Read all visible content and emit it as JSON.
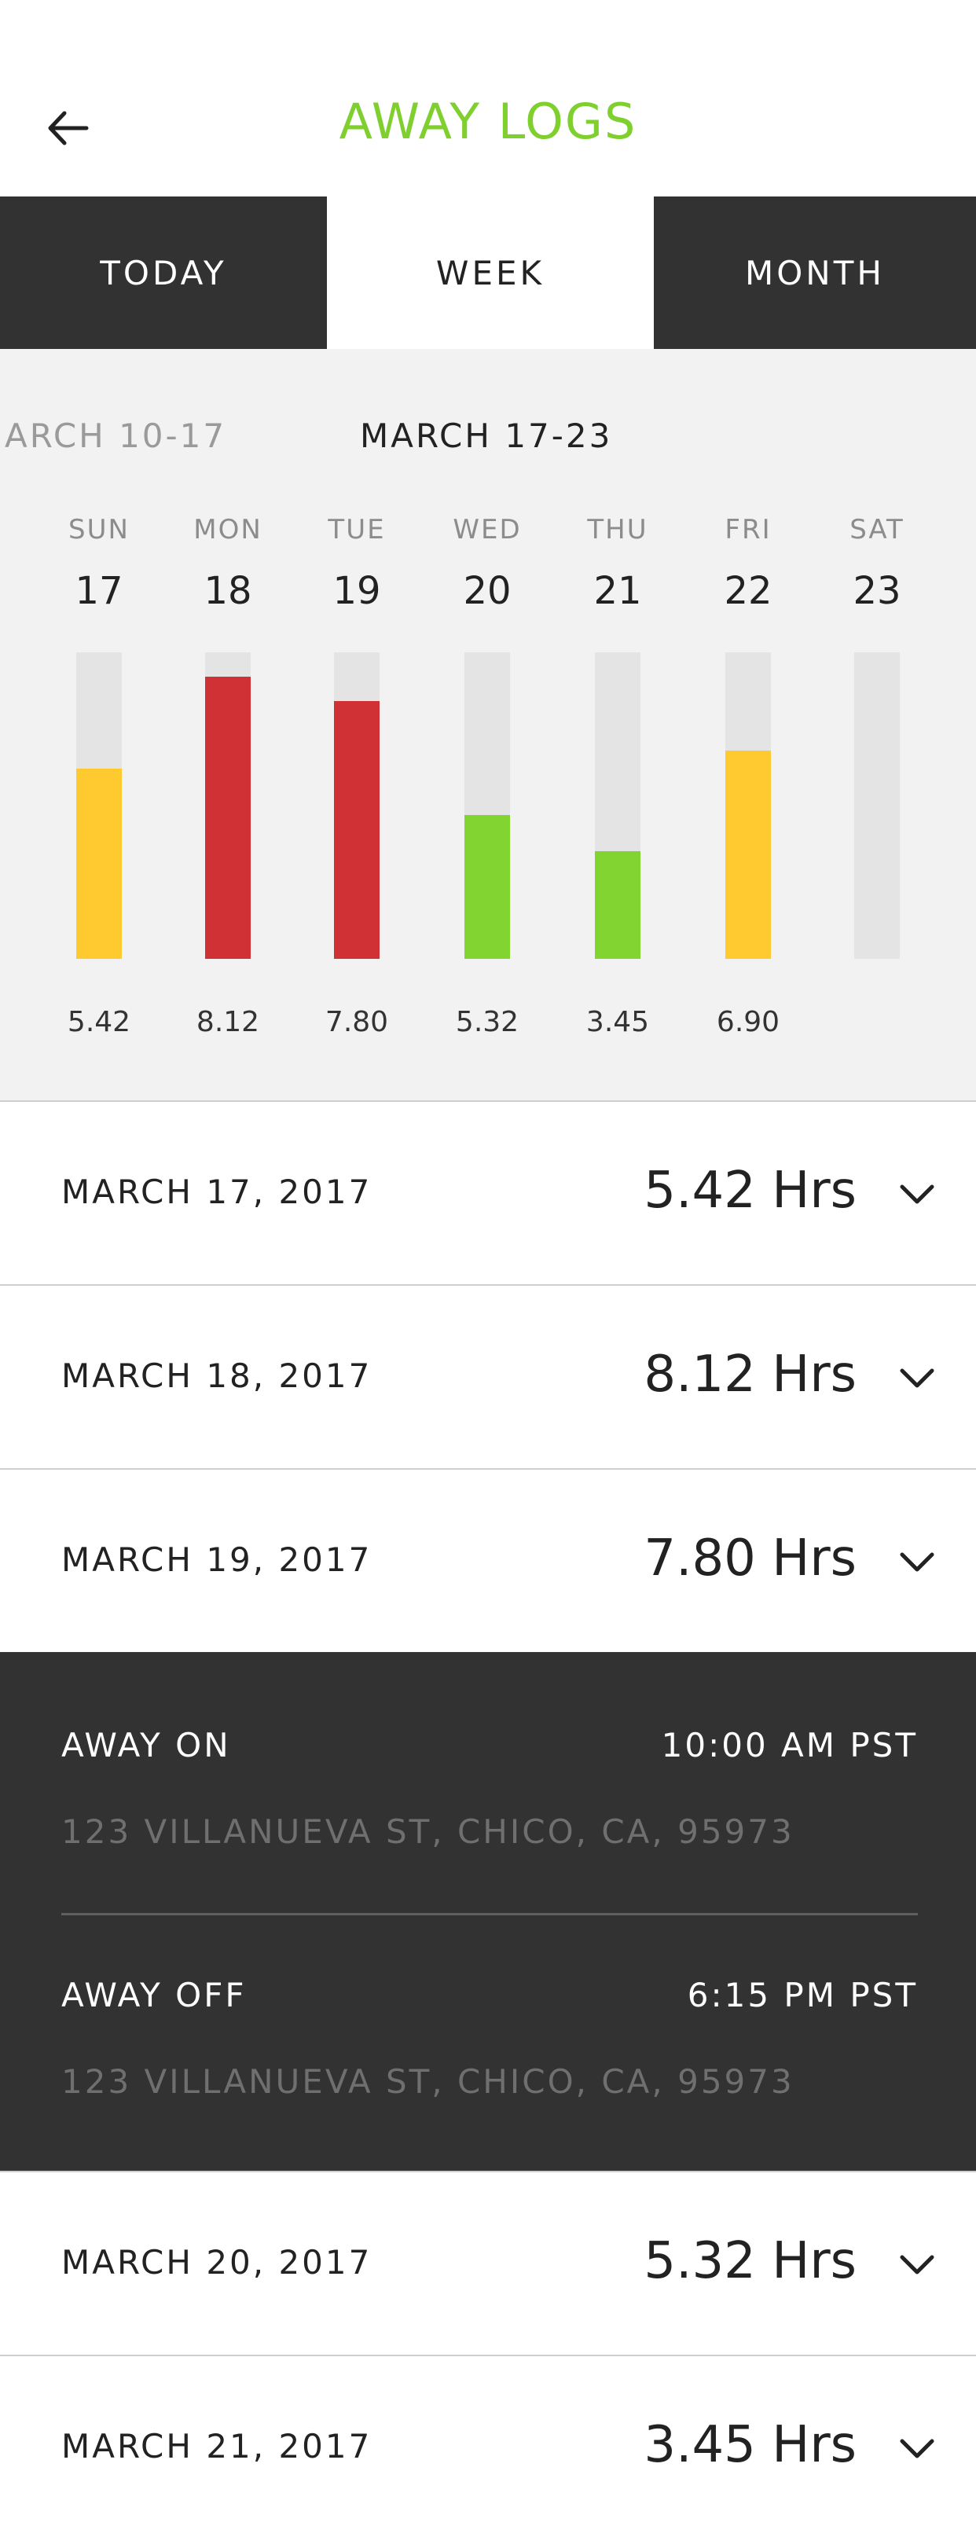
{
  "header": {
    "title": "AWAY LOGS",
    "back_icon": "arrow-left-icon"
  },
  "tabs": [
    {
      "label": "TODAY",
      "active": false
    },
    {
      "label": "WEEK",
      "active": true
    },
    {
      "label": "MONTH",
      "active": false
    }
  ],
  "week": {
    "prev_range": "ARCH 10-17",
    "current_range": "MARCH 17-23",
    "colors": {
      "yellow": "#ffca2f",
      "red": "#cf3135",
      "green": "#82d431",
      "empty": "#e4e4e4"
    }
  },
  "chart_data": {
    "type": "bar",
    "categories": [
      "SUN",
      "MON",
      "TUE",
      "WED",
      "THU",
      "FRI",
      "SAT"
    ],
    "day_numbers": [
      "17",
      "18",
      "19",
      "20",
      "21",
      "22",
      "23"
    ],
    "values": [
      5.42,
      8.12,
      7.8,
      5.32,
      3.45,
      6.9,
      null
    ],
    "value_labels": [
      "5.42",
      "8.12",
      "7.80",
      "5.32",
      "3.45",
      "6.90",
      ""
    ],
    "fill_fractions": [
      0.62,
      0.92,
      0.84,
      0.47,
      0.35,
      0.68,
      0
    ],
    "bar_colors": [
      "#ffca2f",
      "#cf3135",
      "#cf3135",
      "#82d431",
      "#82d431",
      "#ffca2f",
      "#e4e4e4"
    ],
    "title": "",
    "xlabel": "",
    "ylabel": ""
  },
  "logs": [
    {
      "date": "MARCH 17, 2017",
      "hours": "5.42 Hrs"
    },
    {
      "date": "MARCH 18, 2017",
      "hours": "8.12 Hrs"
    },
    {
      "date": "MARCH 19, 2017",
      "hours": "7.80 Hrs"
    },
    {
      "date": "MARCH 20, 2017",
      "hours": "5.32 Hrs"
    },
    {
      "date": "MARCH 21, 2017",
      "hours": "3.45 Hrs"
    }
  ],
  "detail": {
    "away_on_label": "AWAY ON",
    "away_on_time": "10:00 AM PST",
    "away_on_address": "123 VILLANUEVA ST, CHICO, CA, 95973",
    "away_off_label": "AWAY OFF",
    "away_off_time": "6:15 PM PST",
    "away_off_address": "123 VILLANUEVA ST, CHICO, CA, 95973"
  }
}
